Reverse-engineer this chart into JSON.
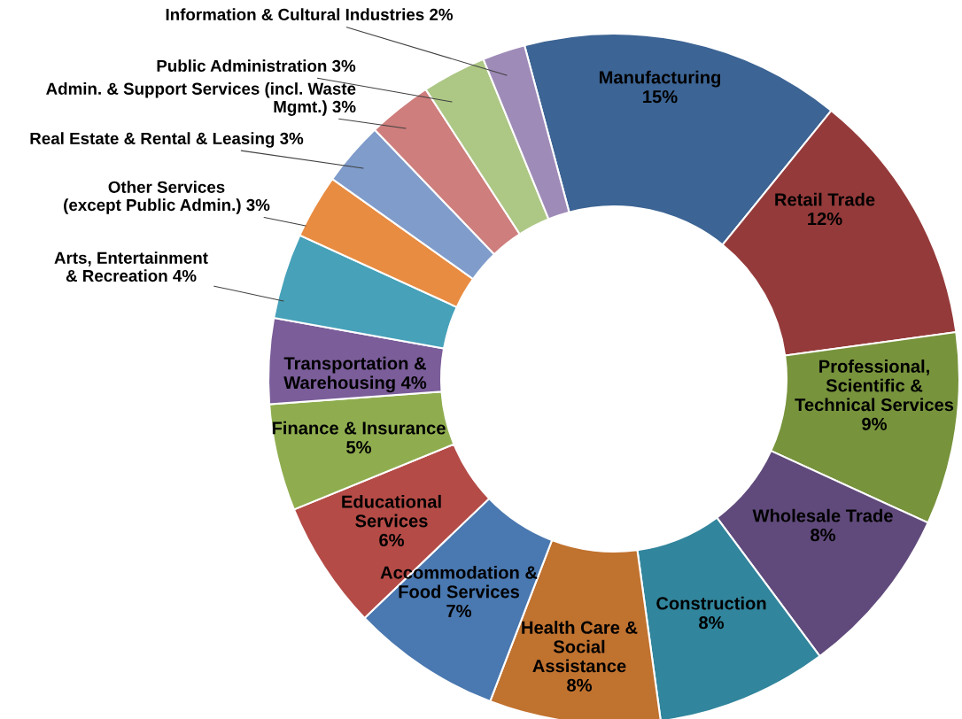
{
  "chart_data": {
    "type": "donut",
    "categories": [
      "Manufacturing",
      "Retail Trade",
      "Professional,\nScientific &\nTechnical Services",
      "Wholesale Trade",
      "Construction",
      "Health Care &\nSocial\nAssistance",
      "Accommodation &\nFood Services",
      "Educational\nServices",
      "Finance & Insurance",
      "Transportation &\nWarehousing",
      "Arts, Entertainment\n& Recreation",
      "Other Services\n(except Public Admin.)",
      "Real Estate & Rental & Leasing",
      "Admin. & Support Services (incl. Waste\nMgmt.)",
      "Public Administration",
      "Information & Cultural Industries"
    ],
    "values": [
      15,
      12,
      9,
      8,
      8,
      8,
      7,
      6,
      5,
      4,
      4,
      3,
      3,
      3,
      3,
      2
    ],
    "value_labels": [
      "15%",
      "12%",
      "9%",
      "8%",
      "8%",
      "8%",
      "7%",
      "6%",
      "5%",
      "4%",
      "4%",
      "3%",
      "3%",
      "3%",
      "3%",
      "2%"
    ],
    "colors": [
      "#3c6494",
      "#953a3a",
      "#77933c",
      "#604a7b",
      "#31859c",
      "#c0722f",
      "#4a78b0",
      "#b44b47",
      "#8fad4f",
      "#7a5d99",
      "#46a1b9",
      "#e88c42",
      "#7f9ccb",
      "#ce7e7c",
      "#adc785",
      "#9f8bb8"
    ],
    "legend": false
  }
}
